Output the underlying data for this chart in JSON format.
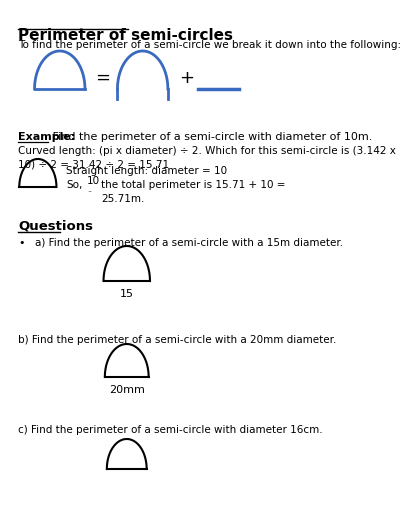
{
  "title": "Perimeter of semi-circles",
  "intro_text": "To find the perimeter of a semi-circle we break it down into the following:",
  "example_label": "Example:",
  "example_text": " Find the perimeter of a semi-circle with diameter of 10m.",
  "curved_length_text": "Curved length: (pi x diameter) ÷ 2. Which for this semi-circle is (3.142 x\n10) ÷ 2 = 31.42 ÷ 2 = 15.71",
  "straight_length_text": "Straight length: diameter = 10",
  "so_text": "So,",
  "so_number": "10",
  "total_text": "the total perimeter is 15.71 + 10 =\n25.71m.",
  "questions_label": "Questions",
  "qa_text": "a) Find the perimeter of a semi-circle with a 15m diameter.",
  "qa_label": "15",
  "qb_text": "b) Find the perimeter of a semi-circle with a 20mm diameter.",
  "qb_label": "20mm",
  "qc_text": "c) Find the perimeter of a semi-circle with diameter 16cm.",
  "blue_color": "#3a6abf",
  "black_color": "#000000",
  "bg_color": "#ffffff"
}
